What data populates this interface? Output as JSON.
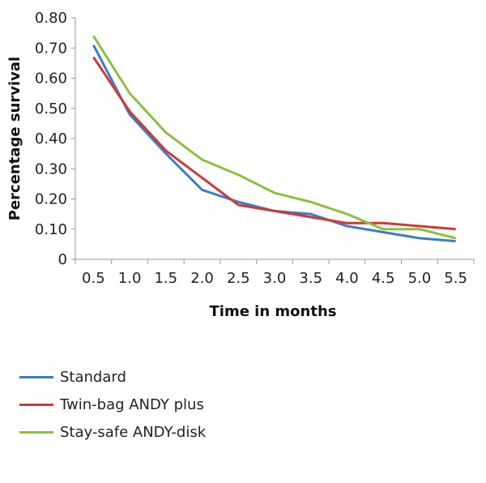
{
  "chart_data": {
    "type": "line",
    "xlabel": "Time in months",
    "ylabel": "Percentage survival",
    "categories": [
      "0.5",
      "1.0",
      "1.5",
      "2.0",
      "2.5",
      "3.0",
      "3.5",
      "4.0",
      "4.5",
      "5.0",
      "5.5"
    ],
    "y_tick_labels": [
      "0",
      "0.10",
      "0.20",
      "0.30",
      "0.40",
      "0.50",
      "0.60",
      "0.70",
      "0.80"
    ],
    "ylim": [
      0,
      0.8
    ],
    "grid": false,
    "legend_position": "bottom",
    "series": [
      {
        "name": "Standard",
        "color": "#3e7cc4",
        "values": [
          0.71,
          0.48,
          0.35,
          0.23,
          0.19,
          0.16,
          0.15,
          0.11,
          0.09,
          0.07,
          0.06
        ]
      },
      {
        "name": "Twin-bag ANDY plus",
        "color": "#cc3b36",
        "values": [
          0.67,
          0.49,
          0.36,
          0.27,
          0.18,
          0.16,
          0.14,
          0.12,
          0.12,
          0.11,
          0.1
        ]
      },
      {
        "name": "Stay-safe ANDY-disk",
        "color": "#8cbf3f",
        "values": [
          0.74,
          0.55,
          0.42,
          0.33,
          0.28,
          0.22,
          0.19,
          0.15,
          0.1,
          0.1,
          0.07
        ]
      }
    ]
  }
}
